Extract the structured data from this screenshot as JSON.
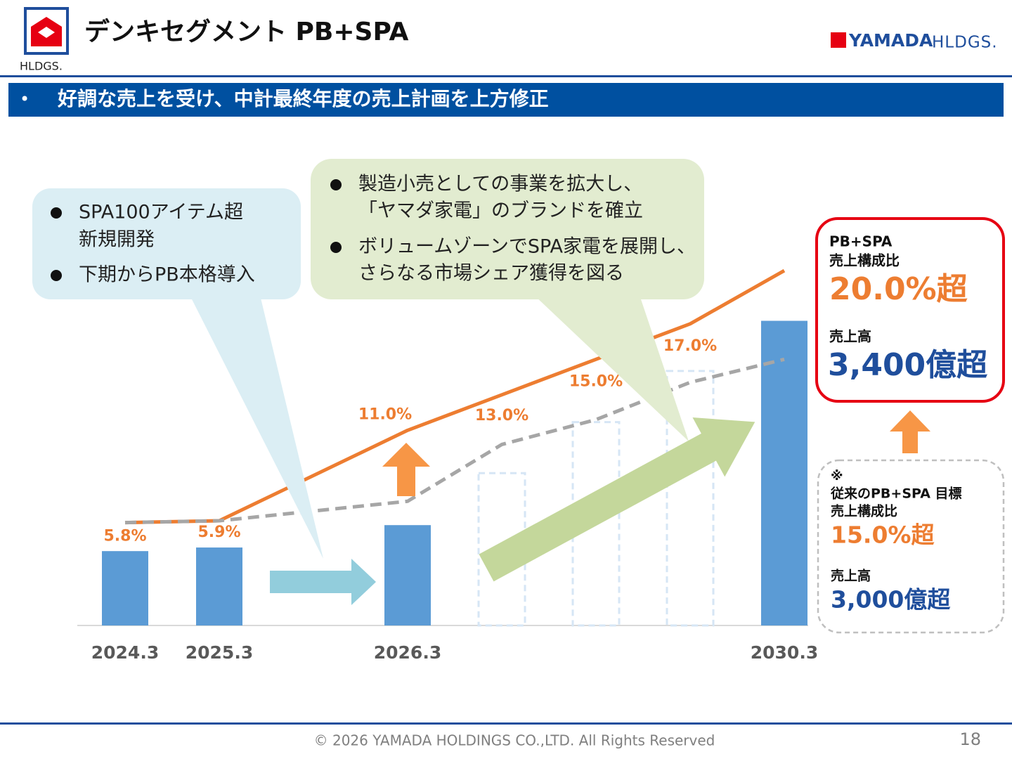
{
  "header": {
    "title": "デンキセグメント PB+SPA",
    "logo_sub": "HLDGS.",
    "brand": "YAMADA",
    "brand_sub": "HLDGS.",
    "banner_bullet": "•",
    "banner": "好調な売上を受け、中計最終年度の売上計画を上方修正"
  },
  "callouts": [
    [
      "SPA100アイテム超",
      "新規開発",
      "下期からPB本格導入"
    ],
    [
      "製造小売としての事業を拡大し、",
      "「ヤマダ家電」のブランドを確立",
      "ボリュームゾーンでSPA家電を展開し、",
      "さらなる市場シェア獲得を図る"
    ]
  ],
  "targets": {
    "new": {
      "label1": "PB+SPA",
      "label2": "売上構成比",
      "ratio": "20.0%超",
      "label3": "売上高",
      "sales": "3,400億超"
    },
    "old": {
      "note": "※",
      "label1": "従来のPB+SPA 目標",
      "label2": "売上構成比",
      "ratio": "15.0%超",
      "label3": "売上高",
      "sales": "3,000億超"
    }
  },
  "chart_data": {
    "type": "bar",
    "categories": [
      "2024.3",
      "2025.3",
      "2026.3",
      null,
      null,
      null,
      "2030.3"
    ],
    "ylim": [
      0,
      4000
    ],
    "y2lim": [
      0,
      20.2
    ],
    "series": [
      {
        "type": "bar",
        "color": "#5b9bd5",
        "values": [
          830,
          870,
          1120,
          null,
          null,
          null,
          3400
        ]
      },
      {
        "type": "bar",
        "color": "#d6e6f5",
        "style": "dashed",
        "values": [
          null,
          null,
          null,
          1700,
          2270,
          2840,
          null
        ]
      },
      {
        "type": "line",
        "axis": "y2",
        "color": "#ed7d31",
        "values": [
          5.8,
          5.9,
          11.0,
          13.0,
          15.0,
          17.0,
          20.0
        ],
        "value_labels": [
          "5.8%",
          "5.9%",
          "11.0%",
          "13.0%",
          "15.0%",
          "17.0%",
          null
        ]
      },
      {
        "type": "line",
        "axis": "y2",
        "color": "#a6a6a6",
        "style": "dashed",
        "values": [
          5.8,
          5.9,
          7.0,
          10.2,
          11.6,
          13.7,
          15.0
        ]
      }
    ]
  },
  "footer": {
    "copyright": "© 2026 YAMADA HOLDINGS CO.,LTD. All Rights Reserved",
    "page": "18"
  }
}
